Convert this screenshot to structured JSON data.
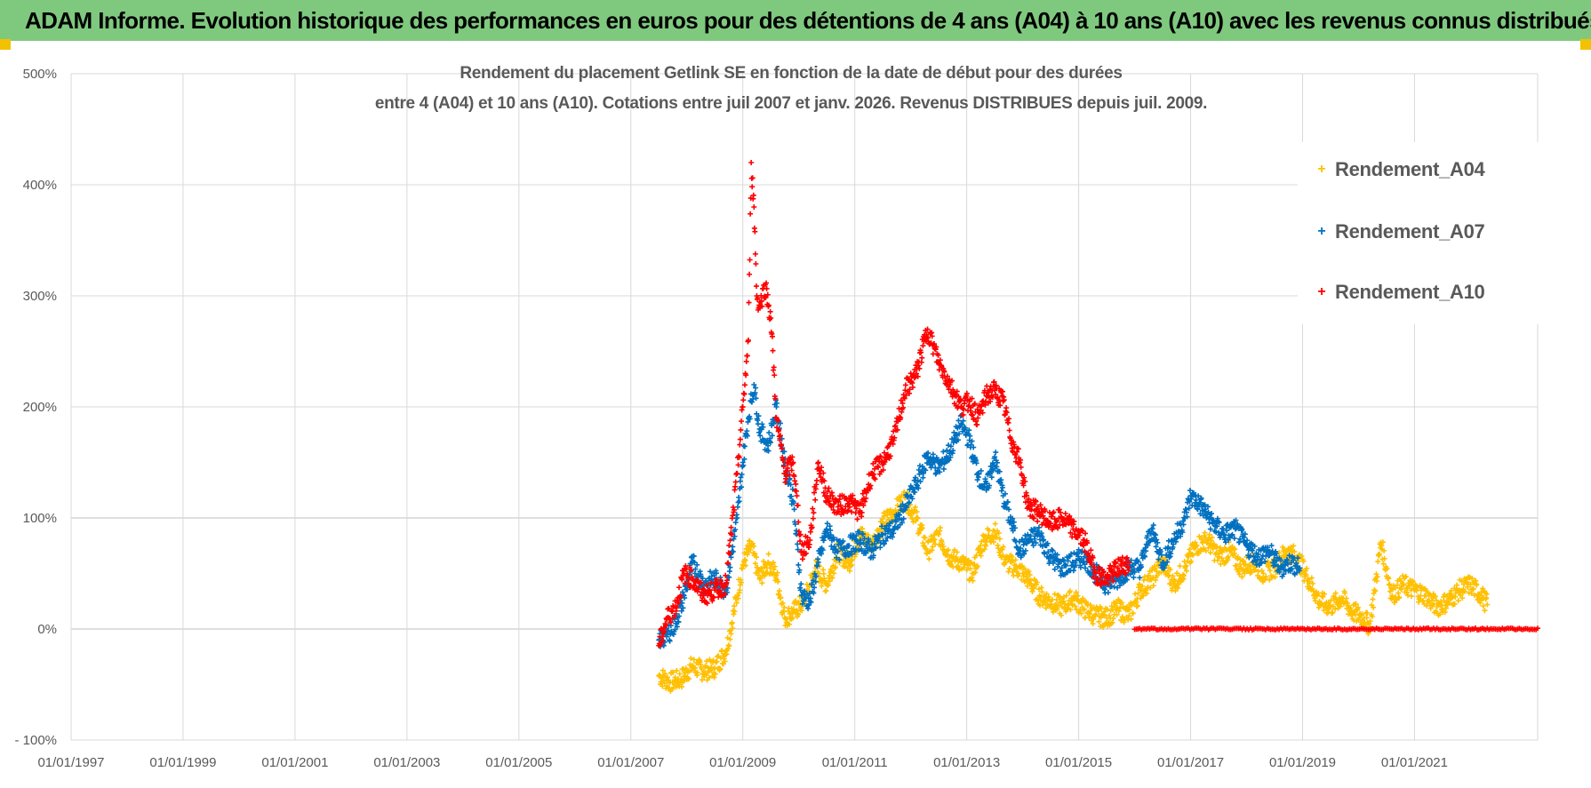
{
  "banner": {
    "text": "ADAM Informe. Evolution historique des performances en euros pour des détentions de 4 ans (A04) à 10 ans (A10) avec les revenus connus distribués"
  },
  "colors": {
    "banner_bg": "#7fc97f",
    "corner": "#f2c200",
    "grid": "#d9d9d9",
    "axis_text": "#595959",
    "a04": "#ffc000",
    "a07": "#0070c0",
    "a10": "#ff0000"
  },
  "chart_data": {
    "type": "scatter",
    "title_line1": "Rendement du placement Getlink SE en fonction de la date de début pour des durées",
    "title_line2": "entre 4 (A04) et 10 ans (A10).  Cotations entre juil 2007 et janv. 2026. Revenus DISTRIBUES depuis juil. 2009.",
    "xlim": [
      1997.0,
      2023.2
    ],
    "ylim": [
      -100,
      500
    ],
    "y_ticks": [
      -100,
      0,
      100,
      200,
      300,
      400,
      500
    ],
    "y_tick_labels": [
      "- 100%",
      "0%",
      "100%",
      "200%",
      "300%",
      "400%",
      "500%"
    ],
    "x_ticks": [
      1997,
      1999,
      2001,
      2003,
      2005,
      2007,
      2009,
      2011,
      2013,
      2015,
      2017,
      2019,
      2021
    ],
    "x_tick_labels": [
      "01/01/1997",
      "01/01/1999",
      "01/01/2001",
      "01/01/2003",
      "01/01/2005",
      "01/01/2007",
      "01/01/2009",
      "01/01/2011",
      "01/01/2013",
      "01/01/2015",
      "01/01/2017",
      "01/01/2019",
      "01/01/2021"
    ],
    "marker": "+",
    "series": [
      {
        "name": "Rendement_A04",
        "color": "#ffc000",
        "x": [
          2007.5,
          2007.7,
          2007.9,
          2008.1,
          2008.3,
          2008.5,
          2008.7,
          2008.9,
          2009.0,
          2009.15,
          2009.3,
          2009.45,
          2009.6,
          2009.75,
          2009.9,
          2010.1,
          2010.3,
          2010.5,
          2010.7,
          2010.9,
          2011.1,
          2011.3,
          2011.5,
          2011.7,
          2011.9,
          2012.1,
          2012.3,
          2012.5,
          2012.7,
          2012.9,
          2013.1,
          2013.3,
          2013.5,
          2013.7,
          2013.9,
          2014.1,
          2014.3,
          2014.5,
          2014.7,
          2014.9,
          2015.1,
          2015.3,
          2015.5,
          2015.7,
          2015.9,
          2016.1,
          2016.3,
          2016.5,
          2016.7,
          2016.9,
          2017.1,
          2017.3,
          2017.5,
          2017.7,
          2017.9,
          2018.1,
          2018.3,
          2018.5,
          2018.7,
          2018.9,
          2019.1,
          2019.3,
          2019.5,
          2019.7,
          2019.9,
          2020.1,
          2020.2,
          2020.4,
          2020.6,
          2020.8,
          2021.0,
          2021.2,
          2021.4,
          2021.6,
          2021.8,
          2022.0,
          2022.2,
          2022.3
        ],
        "y": [
          -42,
          -48,
          -45,
          -33,
          -38,
          -35,
          -20,
          30,
          58,
          75,
          45,
          60,
          48,
          10,
          15,
          25,
          55,
          40,
          70,
          60,
          85,
          75,
          95,
          105,
          118,
          100,
          70,
          85,
          65,
          60,
          50,
          80,
          88,
          60,
          55,
          45,
          30,
          25,
          20,
          28,
          18,
          12,
          10,
          18,
          12,
          35,
          45,
          60,
          40,
          55,
          75,
          80,
          65,
          70,
          55,
          60,
          50,
          55,
          70,
          65,
          45,
          25,
          20,
          28,
          15,
          10,
          2,
          78,
          30,
          40,
          35,
          30,
          20,
          25,
          35,
          40,
          30,
          22
        ]
      },
      {
        "name": "Rendement_A07",
        "color": "#0070c0",
        "x": [
          2007.5,
          2007.65,
          2007.8,
          2007.95,
          2008.1,
          2008.3,
          2008.5,
          2008.7,
          2008.9,
          2009.0,
          2009.1,
          2009.2,
          2009.3,
          2009.45,
          2009.6,
          2009.75,
          2009.9,
          2010.05,
          2010.2,
          2010.35,
          2010.5,
          2010.7,
          2010.9,
          2011.1,
          2011.3,
          2011.5,
          2011.7,
          2011.9,
          2012.1,
          2012.3,
          2012.5,
          2012.7,
          2012.9,
          2013.05,
          2013.2,
          2013.35,
          2013.5,
          2013.65,
          2013.8,
          2013.95,
          2014.1,
          2014.3,
          2014.5,
          2014.7,
          2014.9,
          2015.1,
          2015.3,
          2015.5,
          2015.7,
          2015.9,
          2016.1,
          2016.3,
          2016.5,
          2016.7,
          2016.9,
          2017.0,
          2017.2,
          2017.4,
          2017.6,
          2017.8,
          2018.0,
          2018.2,
          2018.4,
          2018.6,
          2018.8,
          2018.95
        ],
        "y": [
          -10,
          -5,
          5,
          30,
          60,
          40,
          45,
          35,
          100,
          150,
          190,
          220,
          180,
          165,
          200,
          150,
          115,
          30,
          25,
          60,
          90,
          70,
          75,
          80,
          70,
          85,
          90,
          110,
          130,
          155,
          145,
          160,
          185,
          170,
          140,
          125,
          155,
          120,
          95,
          70,
          80,
          85,
          65,
          55,
          60,
          65,
          50,
          40,
          45,
          55,
          55,
          90,
          60,
          80,
          100,
          120,
          110,
          95,
          85,
          90,
          75,
          65,
          70,
          55,
          60,
          55
        ]
      },
      {
        "name": "Rendement_A10",
        "color": "#ff0000",
        "x": [
          2007.5,
          2007.65,
          2007.8,
          2007.95,
          2008.1,
          2008.3,
          2008.5,
          2008.7,
          2008.9,
          2009.0,
          2009.1,
          2009.15,
          2009.2,
          2009.25,
          2009.3,
          2009.4,
          2009.5,
          2009.6,
          2009.75,
          2009.9,
          2010.05,
          2010.2,
          2010.35,
          2010.5,
          2010.7,
          2010.9,
          2011.1,
          2011.3,
          2011.5,
          2011.7,
          2011.9,
          2012.1,
          2012.3,
          2012.5,
          2012.7,
          2012.9,
          2013.05,
          2013.2,
          2013.35,
          2013.5,
          2013.65,
          2013.8,
          2013.95,
          2014.1,
          2014.3,
          2014.5,
          2014.7,
          2014.9,
          2015.1,
          2015.3,
          2015.5,
          2015.7,
          2015.9
        ],
        "y": [
          -15,
          10,
          20,
          50,
          45,
          30,
          35,
          40,
          140,
          200,
          260,
          420,
          380,
          300,
          290,
          310,
          280,
          190,
          140,
          150,
          70,
          80,
          150,
          120,
          110,
          115,
          105,
          140,
          150,
          170,
          215,
          230,
          270,
          240,
          220,
          200,
          205,
          190,
          210,
          215,
          205,
          170,
          150,
          110,
          105,
          95,
          100,
          90,
          80,
          50,
          45,
          55,
          60
        ]
      },
      {
        "name": "Rendement_A10 (flat)",
        "color": "#ff0000",
        "x_range": [
          2016.0,
          2023.2
        ],
        "y": 0
      }
    ]
  },
  "legend": {
    "items": [
      {
        "label": "Rendement_A04",
        "color": "#ffc000",
        "marker": "+"
      },
      {
        "label": "Rendement_A07",
        "color": "#0070c0",
        "marker": "+"
      },
      {
        "label": "Rendement_A10",
        "color": "#ff0000",
        "marker": "+"
      }
    ]
  }
}
